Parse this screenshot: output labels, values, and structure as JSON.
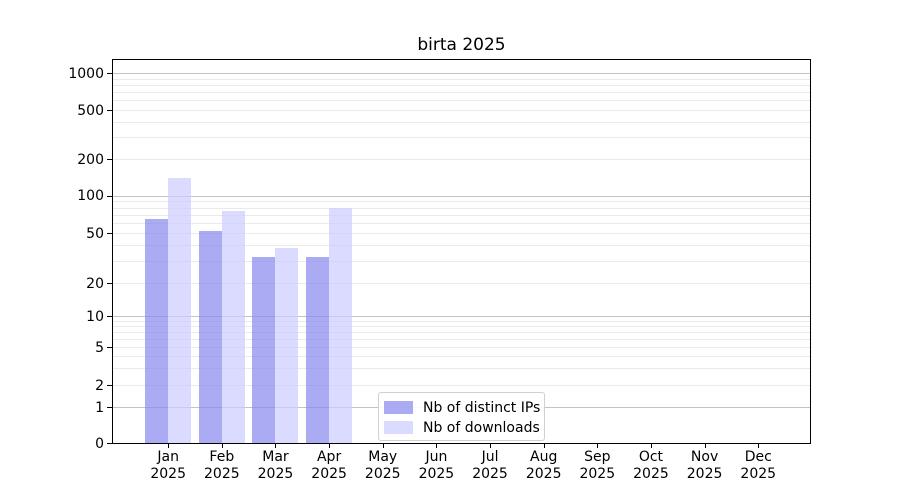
{
  "chart_data": {
    "type": "bar",
    "title": "birta 2025",
    "yscale": "symlog",
    "ylabel": "",
    "xlabel": "",
    "grid": true,
    "y_ticks": [
      0,
      1,
      2,
      5,
      10,
      20,
      50,
      100,
      200,
      500,
      1000
    ],
    "y_major_gridlines": [
      1,
      10,
      100,
      1000
    ],
    "ylim": [
      0,
      1100
    ],
    "categories": [
      "Jan",
      "Feb",
      "Mar",
      "Apr",
      "May",
      "Jun",
      "Jul",
      "Aug",
      "Sep",
      "Oct",
      "Nov",
      "Dec"
    ],
    "x_tick_year": "2025",
    "series": [
      {
        "name": "Nb of distinct IPs",
        "color": "#8888ee",
        "values": [
          65,
          52,
          32,
          32,
          0,
          0,
          0,
          0,
          0,
          0,
          0,
          0
        ]
      },
      {
        "name": "Nb of downloads",
        "color": "#ccccff",
        "values": [
          140,
          75,
          38,
          80,
          0,
          0,
          0,
          0,
          0,
          0,
          0,
          0
        ]
      }
    ],
    "legend_position": "inside-bottom-center-left",
    "colors": {
      "background": "#ffffff",
      "major_grid": "#c3c3c3",
      "minor_grid": "#eaeaea",
      "spine": "#000000",
      "text": "#000000",
      "bar_alpha": 0.7
    }
  }
}
